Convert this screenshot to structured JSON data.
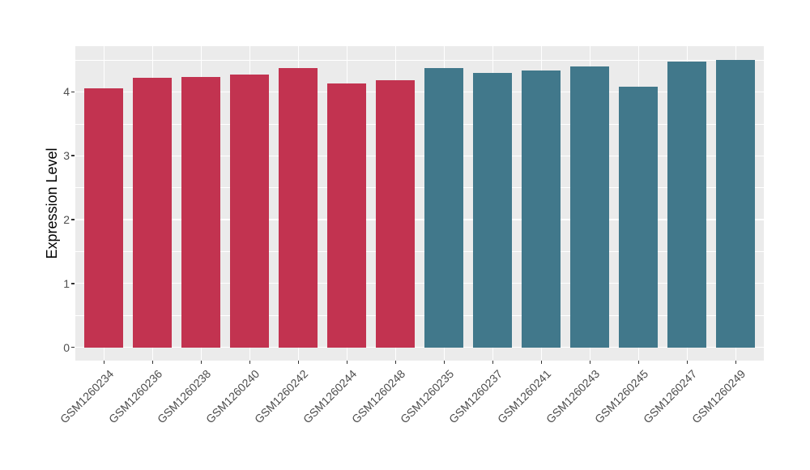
{
  "chart_data": {
    "type": "bar",
    "title": "",
    "xlabel": "",
    "ylabel": "Expression Level",
    "categories": [
      "GSM1260234",
      "GSM1260236",
      "GSM1260238",
      "GSM1260240",
      "GSM1260242",
      "GSM1260244",
      "GSM1260248",
      "GSM1260235",
      "GSM1260237",
      "GSM1260241",
      "GSM1260243",
      "GSM1260245",
      "GSM1260247",
      "GSM1260249"
    ],
    "values": [
      4.06,
      4.22,
      4.23,
      4.27,
      4.37,
      4.13,
      4.18,
      4.37,
      4.3,
      4.34,
      4.4,
      4.08,
      4.47,
      4.5
    ],
    "groups": [
      "groupA",
      "groupA",
      "groupA",
      "groupA",
      "groupA",
      "groupA",
      "groupA",
      "groupB",
      "groupB",
      "groupB",
      "groupB",
      "groupB",
      "groupB",
      "groupB"
    ],
    "group_colors": {
      "groupA": "#C23350",
      "groupB": "#41788B"
    },
    "ylim": [
      0,
      4.72
    ],
    "yticks": [
      "0",
      "1",
      "2",
      "3",
      "4"
    ],
    "ytick_values": [
      0,
      1,
      2,
      3,
      4
    ],
    "minor_tick_values": [
      0.5,
      1.5,
      2.5,
      3.5,
      4.5
    ],
    "grid": "on",
    "legend": "none",
    "style": {
      "panel_bg": "#EBEBEB",
      "grid_color": "#FFFFFF",
      "tick_color": "#333333",
      "tick_label_color": "#4D4D4D",
      "axis_title_color": "#000000"
    }
  }
}
